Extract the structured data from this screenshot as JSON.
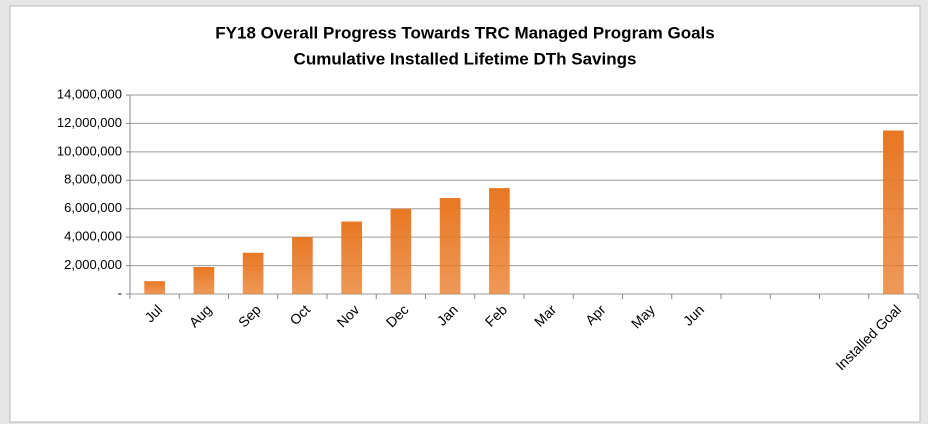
{
  "chart_data": {
    "type": "bar",
    "title": "FY18 Overall Progress Towards TRC Managed Program Goals",
    "subtitle": "Cumulative Installed Lifetime DTh Savings",
    "categories": [
      "Jul",
      "Aug",
      "Sep",
      "Oct",
      "Nov",
      "Dec",
      "Jan",
      "Feb",
      "Mar",
      "Apr",
      "May",
      "Jun",
      null,
      null,
      null,
      "Installed Goal"
    ],
    "values": [
      900000,
      1900000,
      2900000,
      4000000,
      5100000,
      6000000,
      6750000,
      7450000,
      null,
      null,
      null,
      null,
      null,
      null,
      null,
      11500000
    ],
    "color": "#e87722",
    "ylim": [
      0,
      14000000
    ],
    "yticks": [
      {
        "value": 0,
        "label": "-"
      },
      {
        "value": 2000000,
        "label": "2,000,000"
      },
      {
        "value": 4000000,
        "label": "4,000,000"
      },
      {
        "value": 6000000,
        "label": "6,000,000"
      },
      {
        "value": 8000000,
        "label": "8,000,000"
      },
      {
        "value": 10000000,
        "label": "10,000,000"
      },
      {
        "value": 12000000,
        "label": "12,000,000"
      },
      {
        "value": 14000000,
        "label": "14,000,000"
      }
    ],
    "grid": true
  }
}
